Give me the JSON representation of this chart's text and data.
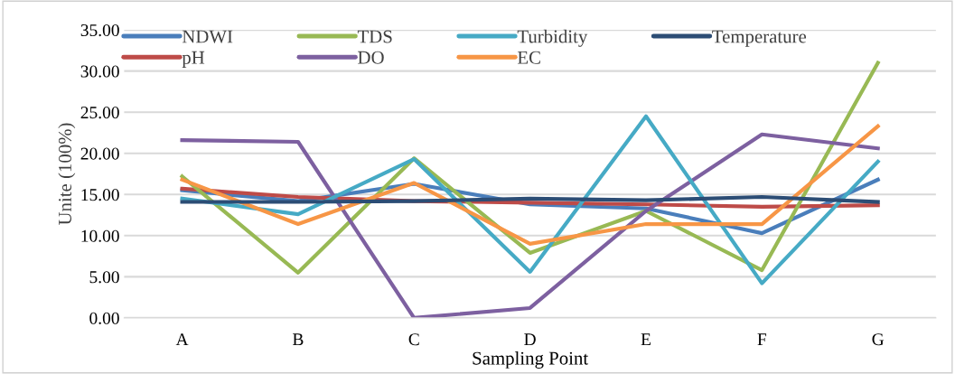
{
  "chart_data": {
    "type": "line",
    "xlabel": "Sampling Point",
    "ylabel": "Unite (100%)",
    "categories": [
      "A",
      "B",
      "C",
      "D",
      "E",
      "F",
      "G"
    ],
    "series": [
      {
        "name": "NDWI",
        "color": "#4a7ebb",
        "values": [
          15.5,
          14.2,
          16.3,
          13.8,
          13.3,
          10.3,
          16.8
        ]
      },
      {
        "name": "pH",
        "color": "#be4b48",
        "values": [
          15.7,
          14.7,
          14.2,
          14.0,
          13.8,
          13.5,
          13.7
        ]
      },
      {
        "name": "TDS",
        "color": "#98b954",
        "values": [
          17.2,
          5.5,
          19.4,
          7.9,
          13.0,
          5.8,
          31.0
        ]
      },
      {
        "name": "DO",
        "color": "#7d60a0",
        "values": [
          21.6,
          21.4,
          0.0,
          1.2,
          13.0,
          22.3,
          20.6
        ]
      },
      {
        "name": "Turbidity",
        "color": "#46aac5",
        "values": [
          14.5,
          12.6,
          19.3,
          5.6,
          24.5,
          4.2,
          19.0
        ]
      },
      {
        "name": "EC",
        "color": "#f79646",
        "values": [
          16.8,
          11.4,
          16.4,
          9.0,
          11.4,
          11.4,
          23.3
        ]
      },
      {
        "name": "Temperature",
        "color": "#2c4d75",
        "values": [
          14.1,
          14.1,
          14.2,
          14.5,
          14.3,
          14.7,
          14.1
        ]
      }
    ],
    "ylim": [
      0,
      35
    ],
    "yticks": [
      {
        "value": 0,
        "label": "0.00"
      },
      {
        "value": 5,
        "label": "5.00"
      },
      {
        "value": 10,
        "label": "10.00"
      },
      {
        "value": 15,
        "label": "15.00"
      },
      {
        "value": 20,
        "label": "20.00"
      },
      {
        "value": 25,
        "label": "25.00"
      },
      {
        "value": 30,
        "label": "30.00"
      },
      {
        "value": 35,
        "label": "35.00"
      }
    ],
    "grid": "y",
    "legend": "top",
    "marker": "none",
    "line_style": "solid"
  }
}
